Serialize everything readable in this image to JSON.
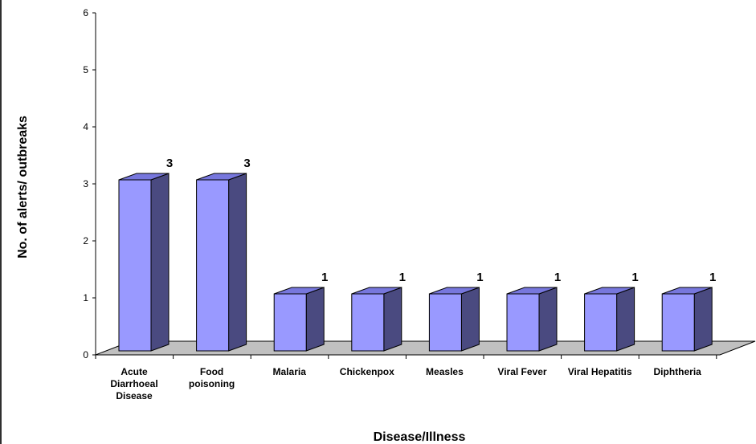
{
  "chart_data": {
    "type": "bar",
    "title": "",
    "xlabel": "Disease/Illness",
    "ylabel": "No. of alerts/ outbreaks",
    "ylim": [
      0,
      6
    ],
    "yticks": [
      0,
      1,
      2,
      3,
      4,
      5,
      6
    ],
    "grid": false,
    "categories": [
      [
        "Acute",
        "Diarrhoeal",
        "Disease"
      ],
      [
        "Food",
        "poisoning"
      ],
      [
        "Malaria"
      ],
      [
        "Chickenpox"
      ],
      [
        "Measles"
      ],
      [
        "Viral Fever"
      ],
      [
        "Viral Hepatitis"
      ],
      [
        "Diphtheria"
      ]
    ],
    "values": [
      3,
      3,
      1,
      1,
      1,
      1,
      1,
      1
    ],
    "data_labels": [
      "3",
      "3",
      "1",
      "1",
      "1",
      "1",
      "1",
      "1"
    ],
    "colors": {
      "bar_front": "#9999ff",
      "bar_top": "#7777dd",
      "bar_side": "#4a4a80",
      "floor": "#c0c0c0"
    }
  }
}
